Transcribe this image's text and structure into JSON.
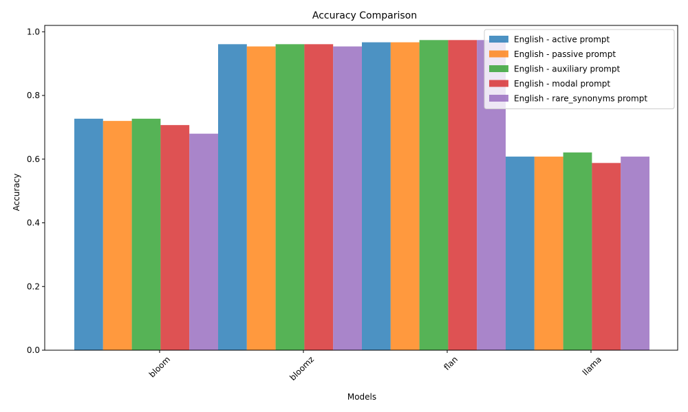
{
  "chart_data": {
    "type": "bar",
    "title": "Accuracy Comparison",
    "xlabel": "Models",
    "ylabel": "Accuracy",
    "categories": [
      "bloom",
      "bloomz",
      "flan",
      "llama"
    ],
    "ylim": [
      0,
      1.02
    ],
    "yticks": [
      0.0,
      0.2,
      0.4,
      0.6,
      0.8,
      1.0
    ],
    "ytick_labels": [
      "0.0",
      "0.2",
      "0.4",
      "0.6",
      "0.8",
      "1.0"
    ],
    "grid": false,
    "legend_position": "top-right",
    "series": [
      {
        "name": "English - active prompt",
        "color": "#1f77b4",
        "values": [
          0.727,
          0.961,
          0.967,
          0.608
        ]
      },
      {
        "name": "English - passive prompt",
        "color": "#ff7f0e",
        "values": [
          0.72,
          0.954,
          0.967,
          0.608
        ]
      },
      {
        "name": "English - auxiliary prompt",
        "color": "#2ca02c",
        "values": [
          0.727,
          0.961,
          0.974,
          0.621
        ]
      },
      {
        "name": "English - modal prompt",
        "color": "#d62728",
        "values": [
          0.707,
          0.961,
          0.974,
          0.588
        ]
      },
      {
        "name": "English - rare_synonyms prompt",
        "color": "#9467bd",
        "values": [
          0.68,
          0.954,
          0.974,
          0.608
        ]
      }
    ]
  }
}
